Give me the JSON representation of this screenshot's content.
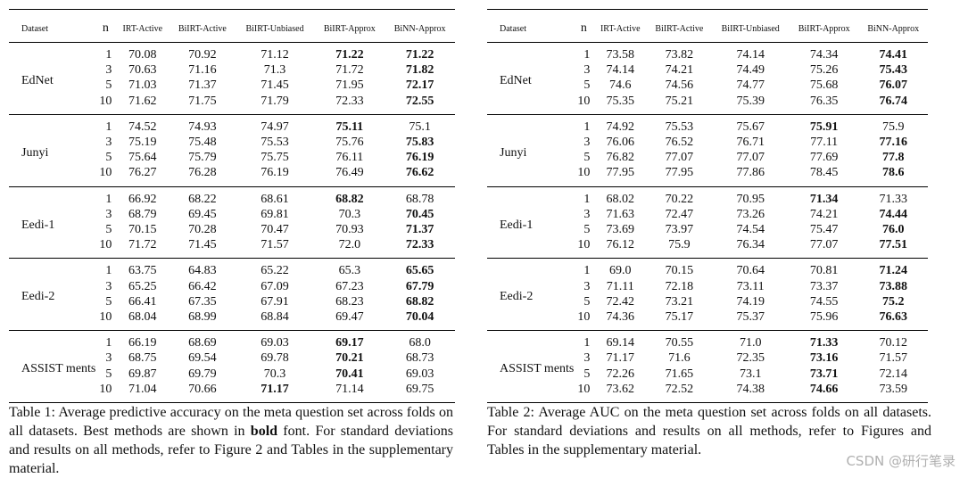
{
  "table1": {
    "headers": [
      "Dataset",
      "n",
      "IRT-Active",
      "BiIRT-Active",
      "BiIRT-Unbiased",
      "BiIRT-Approx",
      "BiNN-Approx"
    ],
    "groups": [
      {
        "dataset": "EdNet",
        "rows": [
          {
            "n": "1",
            "values": [
              "70.08",
              "70.92",
              "71.12",
              "71.22",
              "71.22"
            ],
            "best": [
              3,
              4
            ]
          },
          {
            "n": "3",
            "values": [
              "70.63",
              "71.16",
              "71.3",
              "71.72",
              "71.82"
            ],
            "best": [
              4
            ]
          },
          {
            "n": "5",
            "values": [
              "71.03",
              "71.37",
              "71.45",
              "71.95",
              "72.17"
            ],
            "best": [
              4
            ]
          },
          {
            "n": "10",
            "values": [
              "71.62",
              "71.75",
              "71.79",
              "72.33",
              "72.55"
            ],
            "best": [
              4
            ]
          }
        ]
      },
      {
        "dataset": "Junyi",
        "rows": [
          {
            "n": "1",
            "values": [
              "74.52",
              "74.93",
              "74.97",
              "75.11",
              "75.1"
            ],
            "best": [
              3
            ]
          },
          {
            "n": "3",
            "values": [
              "75.19",
              "75.48",
              "75.53",
              "75.76",
              "75.83"
            ],
            "best": [
              4
            ]
          },
          {
            "n": "5",
            "values": [
              "75.64",
              "75.79",
              "75.75",
              "76.11",
              "76.19"
            ],
            "best": [
              4
            ]
          },
          {
            "n": "10",
            "values": [
              "76.27",
              "76.28",
              "76.19",
              "76.49",
              "76.62"
            ],
            "best": [
              4
            ]
          }
        ]
      },
      {
        "dataset": "Eedi-1",
        "rows": [
          {
            "n": "1",
            "values": [
              "66.92",
              "68.22",
              "68.61",
              "68.82",
              "68.78"
            ],
            "best": [
              3
            ]
          },
          {
            "n": "3",
            "values": [
              "68.79",
              "69.45",
              "69.81",
              "70.3",
              "70.45"
            ],
            "best": [
              4
            ]
          },
          {
            "n": "5",
            "values": [
              "70.15",
              "70.28",
              "70.47",
              "70.93",
              "71.37"
            ],
            "best": [
              4
            ]
          },
          {
            "n": "10",
            "values": [
              "71.72",
              "71.45",
              "71.57",
              "72.0",
              "72.33"
            ],
            "best": [
              4
            ]
          }
        ]
      },
      {
        "dataset": "Eedi-2",
        "rows": [
          {
            "n": "1",
            "values": [
              "63.75",
              "64.83",
              "65.22",
              "65.3",
              "65.65"
            ],
            "best": [
              4
            ]
          },
          {
            "n": "3",
            "values": [
              "65.25",
              "66.42",
              "67.09",
              "67.23",
              "67.79"
            ],
            "best": [
              4
            ]
          },
          {
            "n": "5",
            "values": [
              "66.41",
              "67.35",
              "67.91",
              "68.23",
              "68.82"
            ],
            "best": [
              4
            ]
          },
          {
            "n": "10",
            "values": [
              "68.04",
              "68.99",
              "68.84",
              "69.47",
              "70.04"
            ],
            "best": [
              4
            ]
          }
        ]
      },
      {
        "dataset": "ASSIST ments",
        "rows": [
          {
            "n": "1",
            "values": [
              "66.19",
              "68.69",
              "69.03",
              "69.17",
              "68.0"
            ],
            "best": [
              3
            ]
          },
          {
            "n": "3",
            "values": [
              "68.75",
              "69.54",
              "69.78",
              "70.21",
              "68.73"
            ],
            "best": [
              3
            ]
          },
          {
            "n": "5",
            "values": [
              "69.87",
              "69.79",
              "70.3",
              "70.41",
              "69.03"
            ],
            "best": [
              3
            ]
          },
          {
            "n": "10",
            "values": [
              "71.04",
              "70.66",
              "71.17",
              "71.14",
              "69.75"
            ],
            "best": [
              2
            ]
          }
        ]
      }
    ],
    "caption_parts": [
      {
        "text": "Table 1: Average predictive accuracy on the meta question set across folds on all datasets. Best methods are shown in ",
        "bold": false
      },
      {
        "text": "bold",
        "bold": true
      },
      {
        "text": " font. For standard deviations and results on all methods, refer to Figure 2 and Tables in the supplementary material.",
        "bold": false
      }
    ]
  },
  "table2": {
    "headers": [
      "Dataset",
      "n",
      "IRT-Active",
      "BiIRT-Active",
      "BiIRT-Unbiased",
      "BiIRT-Approx",
      "BiNN-Approx"
    ],
    "groups": [
      {
        "dataset": "EdNet",
        "rows": [
          {
            "n": "1",
            "values": [
              "73.58",
              "73.82",
              "74.14",
              "74.34",
              "74.41"
            ],
            "best": [
              4
            ]
          },
          {
            "n": "3",
            "values": [
              "74.14",
              "74.21",
              "74.49",
              "75.26",
              "75.43"
            ],
            "best": [
              4
            ]
          },
          {
            "n": "5",
            "values": [
              "74.6",
              "74.56",
              "74.77",
              "75.68",
              "76.07"
            ],
            "best": [
              4
            ]
          },
          {
            "n": "10",
            "values": [
              "75.35",
              "75.21",
              "75.39",
              "76.35",
              "76.74"
            ],
            "best": [
              4
            ]
          }
        ]
      },
      {
        "dataset": "Junyi",
        "rows": [
          {
            "n": "1",
            "values": [
              "74.92",
              "75.53",
              "75.67",
              "75.91",
              "75.9"
            ],
            "best": [
              3
            ]
          },
          {
            "n": "3",
            "values": [
              "76.06",
              "76.52",
              "76.71",
              "77.11",
              "77.16"
            ],
            "best": [
              4
            ]
          },
          {
            "n": "5",
            "values": [
              "76.82",
              "77.07",
              "77.07",
              "77.69",
              "77.8"
            ],
            "best": [
              4
            ]
          },
          {
            "n": "10",
            "values": [
              "77.95",
              "77.95",
              "77.86",
              "78.45",
              "78.6"
            ],
            "best": [
              4
            ]
          }
        ]
      },
      {
        "dataset": "Eedi-1",
        "rows": [
          {
            "n": "1",
            "values": [
              "68.02",
              "70.22",
              "70.95",
              "71.34",
              "71.33"
            ],
            "best": [
              3
            ]
          },
          {
            "n": "3",
            "values": [
              "71.63",
              "72.47",
              "73.26",
              "74.21",
              "74.44"
            ],
            "best": [
              4
            ]
          },
          {
            "n": "5",
            "values": [
              "73.69",
              "73.97",
              "74.54",
              "75.47",
              "76.0"
            ],
            "best": [
              4
            ]
          },
          {
            "n": "10",
            "values": [
              "76.12",
              "75.9",
              "76.34",
              "77.07",
              "77.51"
            ],
            "best": [
              4
            ]
          }
        ]
      },
      {
        "dataset": "Eedi-2",
        "rows": [
          {
            "n": "1",
            "values": [
              "69.0",
              "70.15",
              "70.64",
              "70.81",
              "71.24"
            ],
            "best": [
              4
            ]
          },
          {
            "n": "3",
            "values": [
              "71.11",
              "72.18",
              "73.11",
              "73.37",
              "73.88"
            ],
            "best": [
              4
            ]
          },
          {
            "n": "5",
            "values": [
              "72.42",
              "73.21",
              "74.19",
              "74.55",
              "75.2"
            ],
            "best": [
              4
            ]
          },
          {
            "n": "10",
            "values": [
              "74.36",
              "75.17",
              "75.37",
              "75.96",
              "76.63"
            ],
            "best": [
              4
            ]
          }
        ]
      },
      {
        "dataset": "ASSIST ments",
        "rows": [
          {
            "n": "1",
            "values": [
              "69.14",
              "70.55",
              "71.0",
              "71.33",
              "70.12"
            ],
            "best": [
              3
            ]
          },
          {
            "n": "3",
            "values": [
              "71.17",
              "71.6",
              "72.35",
              "73.16",
              "71.57"
            ],
            "best": [
              3
            ]
          },
          {
            "n": "5",
            "values": [
              "72.26",
              "71.65",
              "73.1",
              "73.71",
              "72.14"
            ],
            "best": [
              3
            ]
          },
          {
            "n": "10",
            "values": [
              "73.62",
              "72.52",
              "74.38",
              "74.66",
              "73.59"
            ],
            "best": [
              3
            ]
          }
        ]
      }
    ],
    "caption_parts": [
      {
        "text": "Table 2: Average AUC on the meta question set across folds on all datasets. For standard deviations and results on all methods, refer to Figures and Tables in the supplementary material.",
        "bold": false
      }
    ]
  },
  "watermark": "CSDN @研行笔录"
}
